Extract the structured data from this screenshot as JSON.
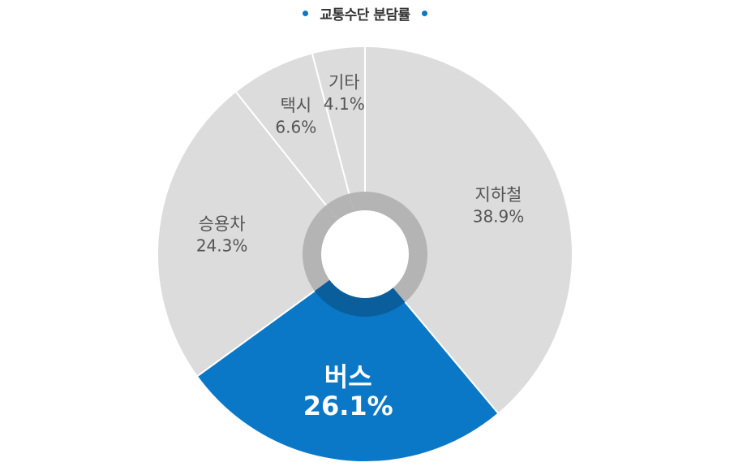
{
  "colors": {
    "accent": "#0a78c6",
    "slice_default": "#dcdcdc",
    "inner_ring": "#b4b4b4",
    "inner_ring_accent": "#0b5e9c",
    "separator": "#ffffff",
    "label_default": "#555555",
    "label_highlight": "#ffffff",
    "title_text": "#333333",
    "title_dot": "#0a78c6"
  },
  "chart_data": {
    "type": "pie",
    "title": "교통수단 분담률",
    "categories": [
      "지하철",
      "버스",
      "승용차",
      "택시",
      "기타"
    ],
    "values": [
      38.9,
      26.1,
      24.3,
      6.6,
      4.1
    ],
    "value_labels": [
      "38.9%",
      "26.1%",
      "24.3%",
      "6.6%",
      "4.1%"
    ],
    "highlight": "버스",
    "start": "12 o'clock",
    "direction": "clockwise",
    "donut": true
  }
}
